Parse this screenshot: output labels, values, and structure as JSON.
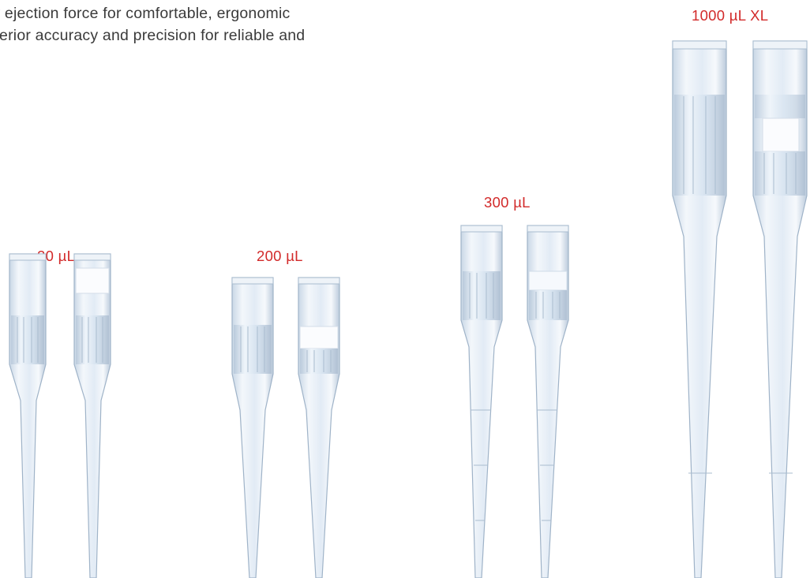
{
  "intro": {
    "line1": "w ejection force for comfortable, ergonomic",
    "line2": "perior accuracy and precision for reliable and"
  },
  "tip_groups": [
    {
      "label": "20 µL"
    },
    {
      "label": "200 µL"
    },
    {
      "label": "300 µL"
    },
    {
      "label": "1000 µL XL"
    }
  ],
  "colors": {
    "label_red": "#d22a2a",
    "body_text": "#3a3a3a",
    "tip_plastic": "#dfe9f4",
    "tip_outline": "#9fb3c8"
  }
}
